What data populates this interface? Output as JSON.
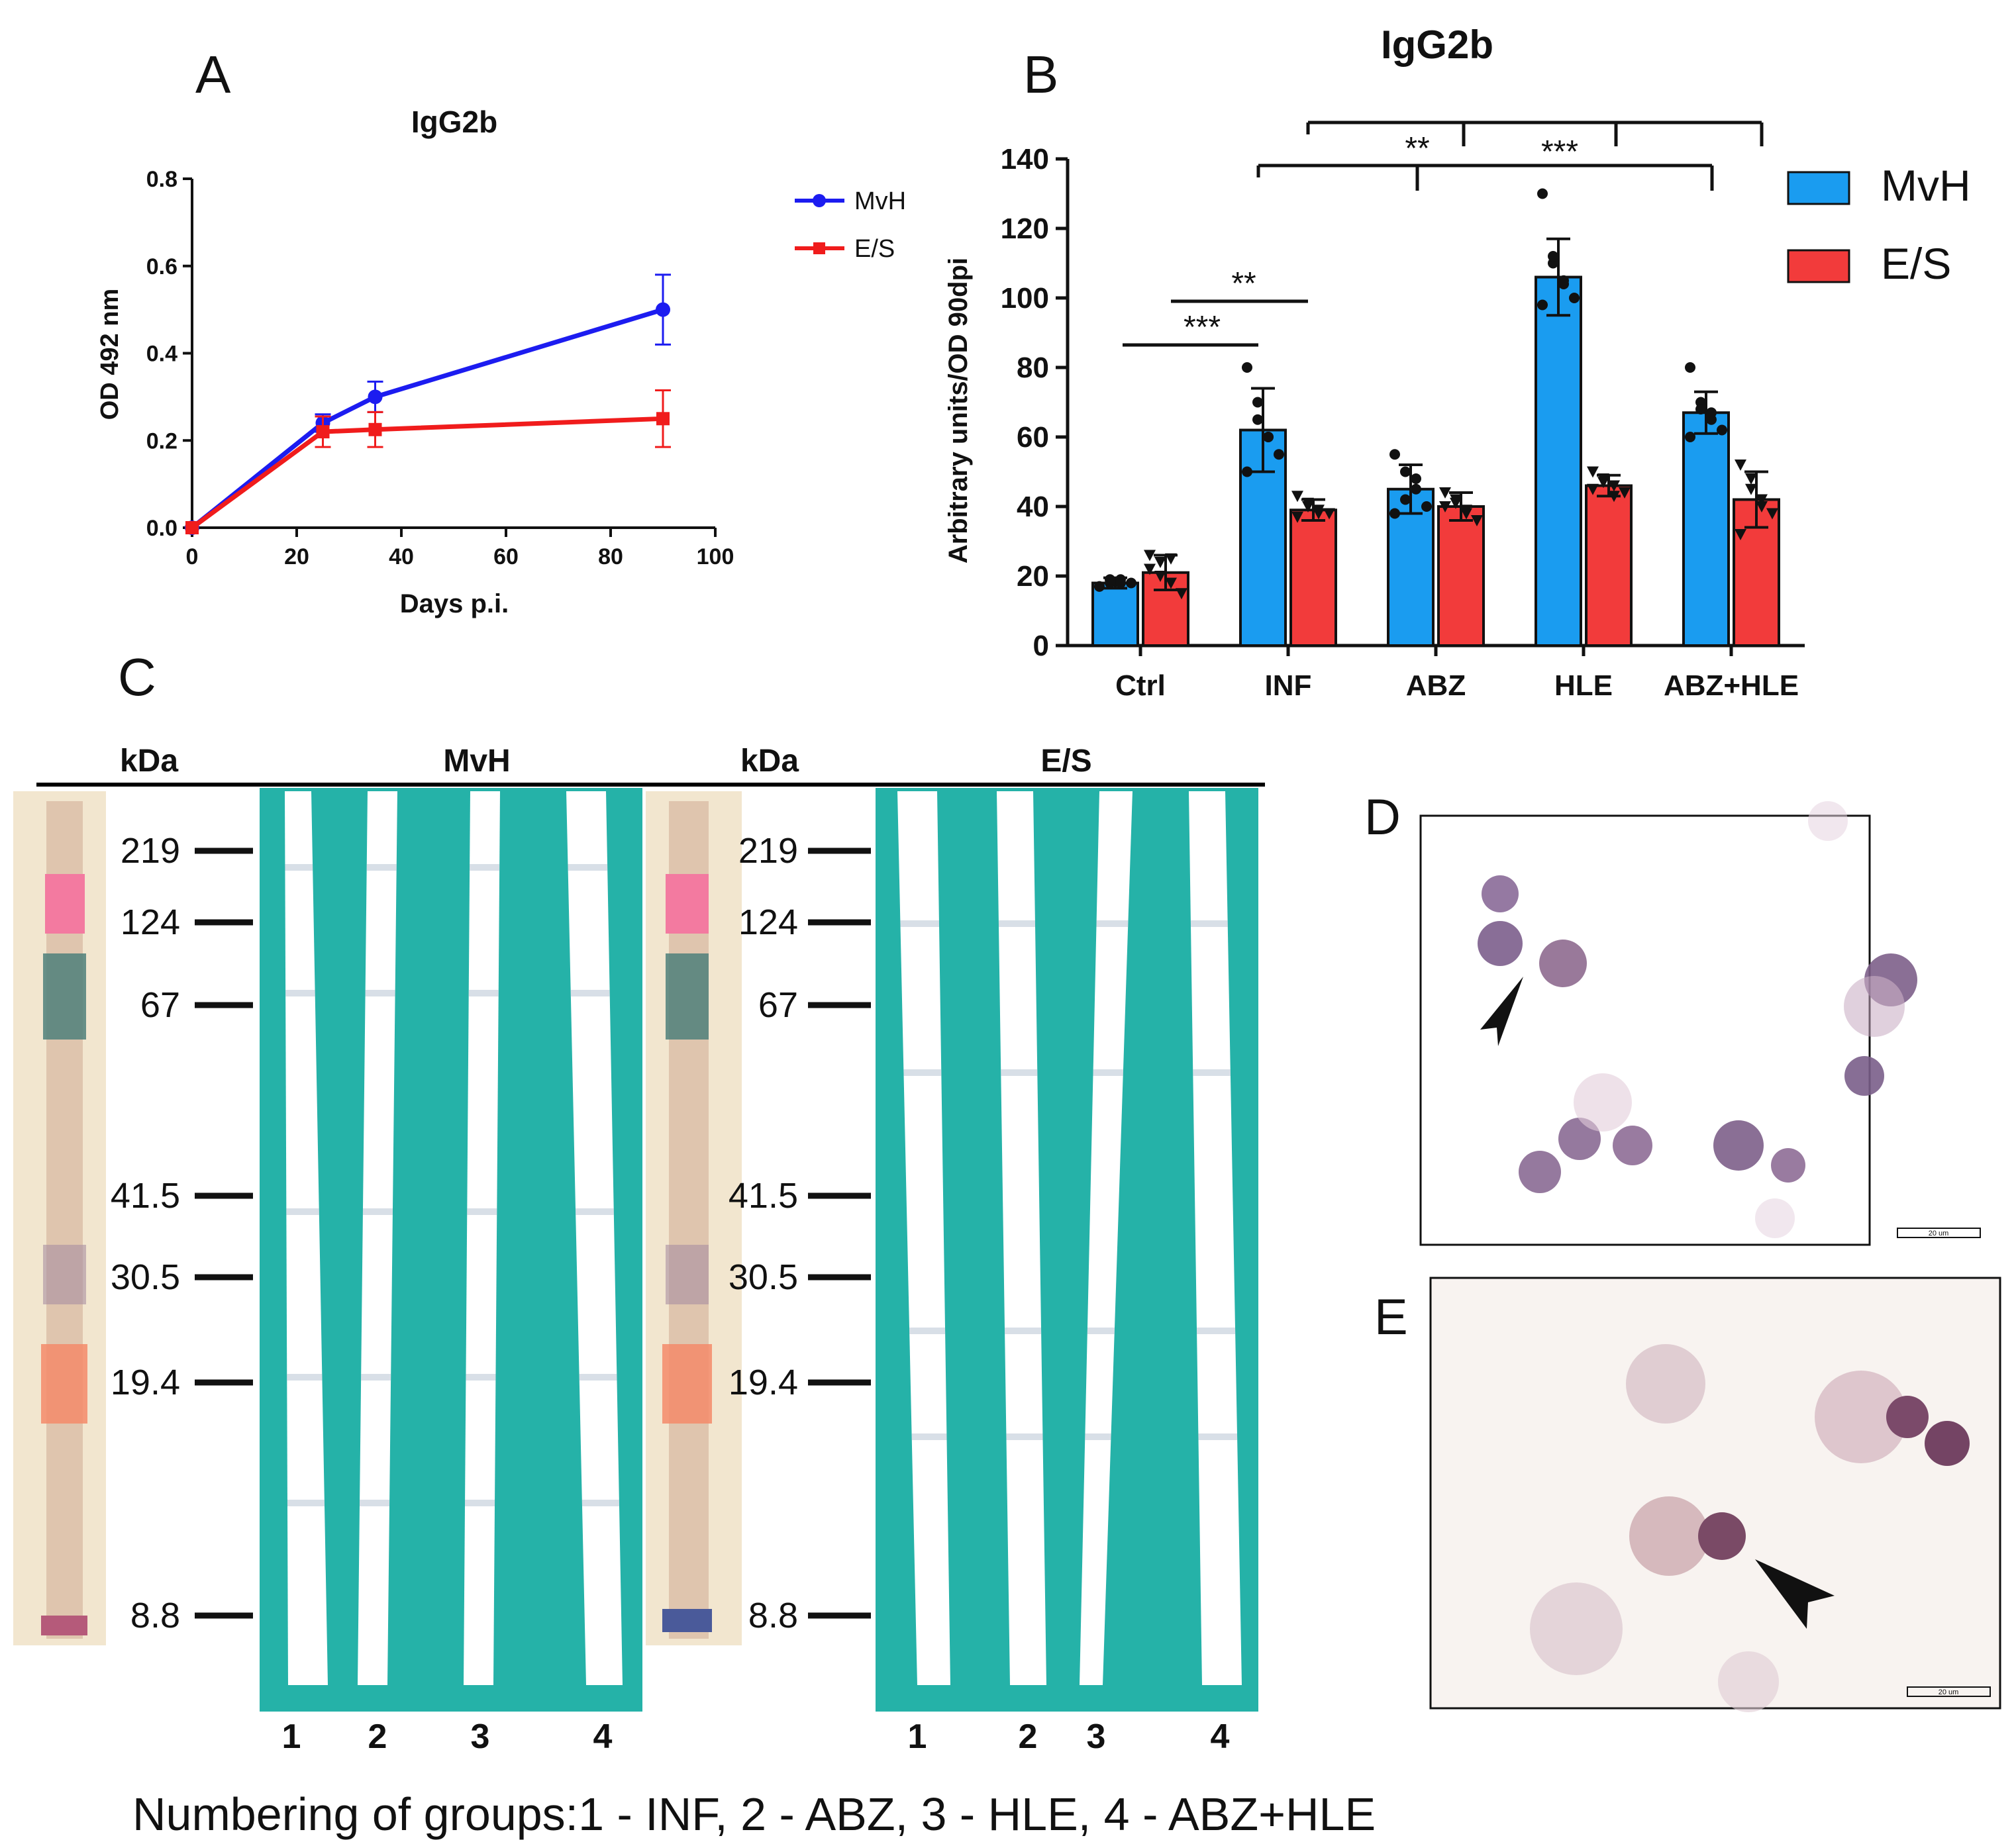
{
  "panel_labels": {
    "a": "A",
    "b": "B",
    "c": "C",
    "d": "D",
    "e": "E"
  },
  "chart_data": [
    {
      "type": "line",
      "title": "IgG2b",
      "xlabel": "Days p.i.",
      "ylabel": "OD 492 nm",
      "xlim": [
        0,
        100
      ],
      "ylim": [
        0,
        0.8
      ],
      "xticks": [
        "0",
        "20",
        "40",
        "60",
        "80",
        "100"
      ],
      "yticks": [
        "0.0",
        "0.2",
        "0.4",
        "0.6",
        "0.8"
      ],
      "legend_position": "top-right",
      "series": [
        {
          "name": "MvH",
          "legend_label": "MvH",
          "color": "#1c1cf0",
          "x": [
            0,
            25,
            35,
            90
          ],
          "y": [
            0.0,
            0.24,
            0.3,
            0.5
          ],
          "err": [
            0,
            0.02,
            0.035,
            0.08
          ]
        },
        {
          "name": "E/S",
          "legend_label": "E/S",
          "color": "#f01c1c",
          "x": [
            0,
            25,
            35,
            90
          ],
          "y": [
            0.0,
            0.22,
            0.225,
            0.25
          ],
          "err": [
            0,
            0.035,
            0.04,
            0.065
          ]
        }
      ]
    },
    {
      "type": "bar",
      "title": "IgG2b",
      "ylabel": "Arbitrary units/OD 90dpi",
      "ylim": [
        0,
        140
      ],
      "yticks": [
        "0",
        "20",
        "40",
        "60",
        "80",
        "100",
        "120",
        "140"
      ],
      "categories": [
        "Ctrl",
        "INF",
        "ABZ",
        "HLE",
        "ABZ+HLE"
      ],
      "legend_position": "top-right",
      "series": [
        {
          "name": "MvH",
          "color": "#1a9cf0",
          "values": [
            18,
            62,
            45,
            106,
            67
          ],
          "err": [
            1.5,
            12,
            7,
            11,
            6
          ],
          "points": [
            [
              17,
              18,
              19,
              18,
              17,
              19,
              18
            ],
            [
              80,
              70,
              60,
              55,
              50,
              65,
              60
            ],
            [
              55,
              50,
              45,
              40,
              38,
              42,
              48
            ],
            [
              130,
              110,
              105,
              100,
              98,
              112,
              104
            ],
            [
              80,
              70,
              65,
              62,
              60,
              68,
              67
            ]
          ]
        },
        {
          "name": "E/S",
          "color": "#f23b3b",
          "values": [
            21,
            39,
            40,
            46,
            42
          ],
          "err": [
            5,
            3,
            4,
            3,
            8
          ],
          "points": [
            [
              26,
              24,
              18,
              15,
              22,
              20,
              25
            ],
            [
              43,
              41,
              39,
              38,
              37,
              40,
              38
            ],
            [
              44,
              41,
              38,
              36,
              40,
              42,
              39
            ],
            [
              50,
              48,
              46,
              44,
              45,
              47,
              43
            ],
            [
              52,
              48,
              42,
              38,
              32,
              45,
              40
            ]
          ]
        }
      ],
      "significance": [
        {
          "from": 0,
          "to": 1,
          "label": "***"
        },
        {
          "from": 0.3,
          "to": 1,
          "label": "**"
        },
        {
          "from": 1,
          "to": 4,
          "drop": 2,
          "label": "**"
        },
        {
          "from": 1.5,
          "to": 4.5,
          "drop": 3,
          "label": "***"
        }
      ]
    }
  ],
  "blots": {
    "kda_label": "kDa",
    "markers": [
      "219",
      "124",
      "67",
      "41.5",
      "30.5",
      "19.4",
      "8.8"
    ],
    "left_title": "MvH",
    "right_title": "E/S",
    "lanes": [
      "1",
      "2",
      "3",
      "4"
    ]
  },
  "micro": {
    "scalebar_d": "20 um",
    "scalebar_e": "20 um"
  },
  "caption": "Numbering of groups:1 - INF, 2 - ABZ, 3 - HLE, 4 - ABZ+HLE"
}
